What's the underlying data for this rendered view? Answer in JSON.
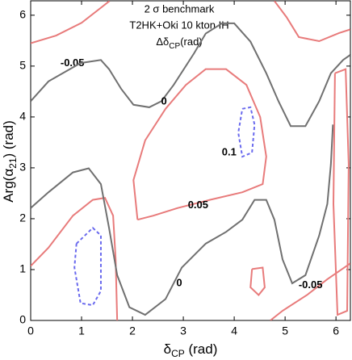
{
  "chart_data": {
    "type": "contour",
    "title_lines": [
      "2 σ benchmark",
      "T2HK+Oki 10 kton IH"
    ],
    "legend_title": {
      "main": "Δδ",
      "sub": "CP",
      "rest": "(rad)"
    },
    "xlabel": {
      "main": "δ",
      "sub": "CP",
      "rest": " (rad)"
    },
    "ylabel": {
      "main": "Arg(α",
      "sub": "21",
      "rest": ")  (rad)"
    },
    "xlim": [
      0,
      6.2832
    ],
    "ylim": [
      0,
      6.2832
    ],
    "xticks": [
      0,
      1,
      2,
      3,
      4,
      5,
      6
    ],
    "yticks": [
      0,
      1,
      2,
      3,
      4,
      5,
      6
    ],
    "contours": [
      {
        "color": "#e87b7b",
        "level": -0.05,
        "label_x": 0.82,
        "label_y": 5.05,
        "x": [
          0,
          0.5,
          1.0,
          1.55
        ],
        "y": [
          5.45,
          5.6,
          5.85,
          6.28
        ]
      },
      {
        "color": "#707070",
        "level": 0,
        "label_x": 2.62,
        "label_y": 4.3,
        "x": [
          0,
          0.35,
          0.98,
          1.38,
          1.54,
          1.78,
          2.02,
          2.33,
          2.57,
          2.81,
          3.21,
          3.44,
          3.76,
          4.0,
          4.32,
          4.63,
          4.87,
          5.11,
          5.4,
          5.67,
          5.9,
          6.14,
          6.28
        ],
        "y": [
          4.31,
          4.7,
          5.06,
          5.12,
          4.94,
          4.55,
          4.24,
          4.19,
          4.31,
          4.63,
          5.25,
          5.64,
          5.84,
          5.84,
          5.48,
          4.86,
          4.31,
          3.82,
          3.82,
          4.31,
          4.86,
          5.12,
          5.22
        ]
      },
      {
        "color": "#e87b7b",
        "x": [
          4.79,
          5.03,
          5.27,
          5.67,
          6.06,
          6.28
        ],
        "y": [
          6.28,
          5.96,
          5.57,
          5.49,
          5.65,
          5.72
        ]
      },
      {
        "color": "#e87b7b",
        "level": 0.05,
        "label_x": 3.29,
        "label_y": 2.26,
        "x": [
          2.1,
          2.02,
          2.25,
          2.65,
          3.05,
          3.44,
          3.84,
          4.24,
          4.51,
          4.63,
          4.56,
          4.16,
          3.52,
          2.89,
          2.41,
          2.1
        ],
        "y": [
          1.98,
          2.76,
          3.54,
          4.16,
          4.63,
          4.94,
          4.94,
          4.63,
          4.0,
          3.22,
          2.68,
          2.52,
          2.37,
          2.21,
          2.06,
          1.98
        ]
      },
      {
        "color": "#e87b7b",
        "x": [
          0,
          0.35,
          0.83,
          1.22,
          1.46,
          1.62,
          1.67,
          1.7
        ],
        "y": [
          1.07,
          1.43,
          2.06,
          2.37,
          2.41,
          2.06,
          1.2,
          0
        ]
      },
      {
        "color": "#707070",
        "level": 0,
        "label_x": 2.92,
        "label_y": 0.73,
        "x": [
          0,
          0.35,
          0.83,
          1.14,
          1.38,
          1.54,
          1.7,
          1.94,
          2.25,
          2.65,
          2.97,
          3.44,
          3.84,
          4.16,
          4.4,
          4.63,
          4.79,
          4.95,
          5.14,
          5.4,
          5.67,
          5.83,
          5.9,
          5.94
        ],
        "y": [
          2.21,
          2.52,
          2.91,
          2.99,
          2.68,
          1.82,
          0.89,
          0.26,
          0.11,
          0.42,
          1.04,
          1.51,
          1.74,
          1.98,
          2.37,
          2.37,
          1.98,
          1.2,
          0.73,
          0.89,
          1.67,
          2.29,
          3.07,
          3.85
        ]
      },
      {
        "color": "#6a6aee",
        "dashed": true,
        "level": 0.1,
        "label_x": 3.9,
        "label_y": 3.3,
        "x": [
          4.16,
          4.32,
          4.4,
          4.35,
          4.16,
          4.08,
          4.16
        ],
        "y": [
          4.16,
          4.19,
          3.85,
          3.3,
          3.22,
          3.69,
          4.16
        ]
      },
      {
        "color": "#6a6aee",
        "dashed": true,
        "x": [
          0.9,
          1.22,
          1.38,
          1.38,
          1.22,
          0.98,
          0.86,
          0.9
        ],
        "y": [
          1.51,
          1.82,
          1.67,
          0.58,
          0.3,
          0.34,
          1.04,
          1.51
        ]
      },
      {
        "color": "#e87b7b",
        "x": [
          4.35,
          4.56,
          4.6,
          4.48,
          4.32,
          4.35
        ],
        "y": [
          1.01,
          1.04,
          0.65,
          0.5,
          0.65,
          1.01
        ]
      },
      {
        "color": "#e87b7b",
        "x": [
          5.98,
          6.19,
          6.25,
          6.22,
          6.03,
          5.95,
          5.98
        ],
        "y": [
          4.86,
          4.94,
          3.07,
          0.19,
          0.11,
          2.29,
          4.86
        ]
      },
      {
        "color": "#e87b7b",
        "level": -0.05,
        "label_x": 5.5,
        "label_y": 0.69,
        "x": [
          4.71,
          4.95,
          5.43,
          5.83,
          6.28
        ],
        "y": [
          0,
          0.19,
          0.5,
          0.81,
          1.12
        ]
      }
    ]
  }
}
